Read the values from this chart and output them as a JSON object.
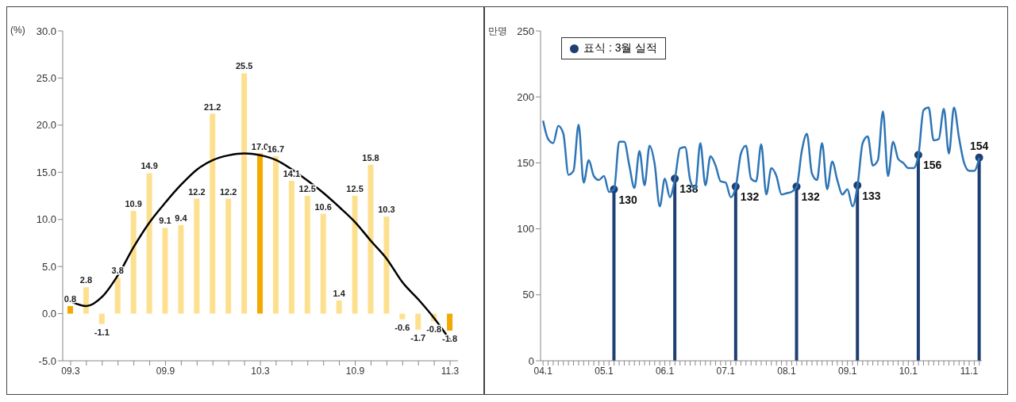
{
  "chart_data": [
    {
      "type": "bar",
      "ylabel": "(%)",
      "categories": [
        "09.3",
        null,
        null,
        null,
        null,
        null,
        "09.9",
        null,
        null,
        null,
        null,
        null,
        "10.3",
        null,
        null,
        null,
        null,
        null,
        "10.9",
        null,
        null,
        null,
        null,
        null,
        "11.3"
      ],
      "series": [
        {
          "colors": [
            "#f2a900",
            "#fde08f",
            "#fde08f",
            "#fde08f",
            "#fde08f",
            "#fde08f",
            "#fde08f",
            "#fde08f",
            "#fde08f",
            "#fde08f",
            "#fde08f",
            "#fde08f",
            "#f2a900",
            "#fde08f",
            "#fde08f",
            "#fde08f",
            "#fde08f",
            "#fde08f",
            "#fde08f",
            "#fde08f",
            "#fde08f",
            "#fde08f",
            "#fde08f",
            "#fde08f",
            "#f2a900"
          ],
          "values": [
            0.8,
            2.8,
            -1.1,
            3.8,
            10.9,
            14.9,
            9.1,
            9.4,
            12.2,
            21.2,
            12.2,
            25.5,
            17.0,
            16.7,
            14.1,
            12.5,
            10.6,
            1.4,
            12.5,
            15.8,
            10.3,
            -0.6,
            -1.7,
            -0.8,
            -1.8
          ],
          "value_labels": [
            "0.8",
            "2.8",
            "-1.1",
            "3.8",
            "10.9",
            "14.9",
            "9.1",
            "9.4",
            "12.2",
            "21.2",
            "12.2",
            "25.5",
            "17.0",
            "16.7",
            "14.1",
            "12.5",
            "10.6",
            "1.4",
            "12.5",
            "15.8",
            "10.3",
            "-0.6",
            "-1.7",
            "-0.8",
            "-1.8"
          ]
        },
        {
          "type": "line",
          "color": "#000000",
          "values": [
            1.3,
            0.8,
            1.8,
            4.1,
            7.1,
            9.7,
            11.8,
            13.7,
            15.3,
            16.3,
            16.8,
            17.0,
            16.8,
            16.3,
            15.3,
            14.1,
            12.8,
            11.3,
            9.7,
            7.7,
            5.8,
            3.3,
            1.5,
            -0.5,
            -2.8
          ]
        }
      ],
      "ylim": [
        -5,
        30
      ],
      "yticks": [
        {
          "value": -5,
          "label": "-5.0"
        },
        {
          "value": 0,
          "label": "0.0"
        },
        {
          "value": 5,
          "label": "5.0"
        },
        {
          "value": 10,
          "label": "10.0"
        },
        {
          "value": 15,
          "label": "15.0"
        },
        {
          "value": 20,
          "label": "20.0"
        },
        {
          "value": 25,
          "label": "25.0"
        },
        {
          "value": 30,
          "label": "30.0"
        }
      ],
      "grid": false,
      "legend": false,
      "marker": "none"
    },
    {
      "type": "line",
      "ylabel": "만명",
      "categories": [
        "04.1",
        null,
        null,
        null,
        null,
        null,
        null,
        null,
        null,
        null,
        null,
        null,
        "05.1",
        null,
        null,
        null,
        null,
        null,
        null,
        null,
        null,
        null,
        null,
        null,
        "06.1",
        null,
        null,
        null,
        null,
        null,
        null,
        null,
        null,
        null,
        null,
        null,
        "07.1",
        null,
        null,
        null,
        null,
        null,
        null,
        null,
        null,
        null,
        null,
        null,
        "08.1",
        null,
        null,
        null,
        null,
        null,
        null,
        null,
        null,
        null,
        null,
        null,
        "09.1",
        null,
        null,
        null,
        null,
        null,
        null,
        null,
        null,
        null,
        null,
        null,
        "10.1",
        null,
        null,
        null,
        null,
        null,
        null,
        null,
        null,
        null,
        null,
        null,
        "11.1",
        null,
        null
      ],
      "series": [
        {
          "color": "#2e75b6",
          "marker": "none",
          "values": [
            182,
            168,
            165,
            178,
            172,
            141,
            144,
            179,
            135,
            152,
            140,
            137,
            140,
            128,
            130,
            166,
            166,
            148,
            131,
            159,
            133,
            163,
            149,
            117,
            138,
            124,
            138,
            161,
            162,
            137,
            130,
            165,
            133,
            155,
            148,
            136,
            135,
            124,
            132,
            157,
            163,
            138,
            136,
            164,
            126,
            146,
            140,
            126,
            127,
            128,
            132,
            159,
            172,
            142,
            137,
            165,
            130,
            151,
            137,
            126,
            130,
            117,
            133,
            165,
            170,
            148,
            152,
            189,
            140,
            166,
            153,
            150,
            146,
            146,
            156,
            190,
            192,
            167,
            168,
            191,
            157,
            192,
            169,
            150,
            144,
            144,
            154
          ]
        },
        {
          "type": "lollipop",
          "name": "표식 : 3월 실적",
          "color": "#1f3f73",
          "marker": "circle",
          "values": [
            null,
            null,
            null,
            null,
            null,
            null,
            null,
            null,
            null,
            null,
            null,
            null,
            null,
            null,
            130,
            null,
            null,
            null,
            null,
            null,
            null,
            null,
            null,
            null,
            null,
            null,
            138,
            null,
            null,
            null,
            null,
            null,
            null,
            null,
            null,
            null,
            null,
            null,
            132,
            null,
            null,
            null,
            null,
            null,
            null,
            null,
            null,
            null,
            null,
            null,
            132,
            null,
            null,
            null,
            null,
            null,
            null,
            null,
            null,
            null,
            null,
            null,
            133,
            null,
            null,
            null,
            null,
            null,
            null,
            null,
            null,
            null,
            null,
            null,
            156,
            null,
            null,
            null,
            null,
            null,
            null,
            null,
            null,
            null,
            null,
            null,
            154
          ],
          "value_labels": [
            null,
            null,
            null,
            null,
            null,
            null,
            null,
            null,
            null,
            null,
            null,
            null,
            null,
            null,
            "130",
            null,
            null,
            null,
            null,
            null,
            null,
            null,
            null,
            null,
            null,
            null,
            "138",
            null,
            null,
            null,
            null,
            null,
            null,
            null,
            null,
            null,
            null,
            null,
            "132",
            null,
            null,
            null,
            null,
            null,
            null,
            null,
            null,
            null,
            null,
            null,
            "132",
            null,
            null,
            null,
            null,
            null,
            null,
            null,
            null,
            null,
            null,
            null,
            "133",
            null,
            null,
            null,
            null,
            null,
            null,
            null,
            null,
            null,
            null,
            null,
            "156",
            null,
            null,
            null,
            null,
            null,
            null,
            null,
            null,
            null,
            null,
            null,
            "154"
          ]
        }
      ],
      "ylim": [
        0,
        250
      ],
      "yticks": [
        0,
        50,
        100,
        150,
        200,
        250
      ],
      "grid": false,
      "legend": "top left"
    }
  ]
}
